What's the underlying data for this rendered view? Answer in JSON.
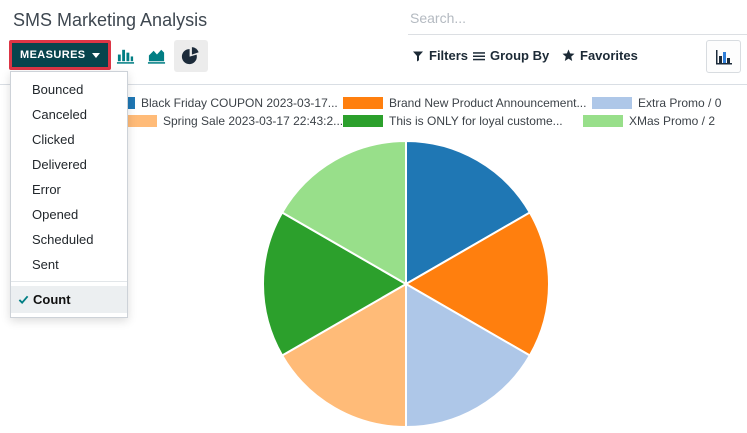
{
  "header": {
    "title": "SMS Marketing Analysis",
    "search_placeholder": "Search..."
  },
  "toolbar": {
    "measures_label": "MEASURES",
    "filters_label": "Filters",
    "group_by_label": "Group By",
    "favorites_label": "Favorites"
  },
  "measures_menu": {
    "items": [
      "Bounced",
      "Canceled",
      "Clicked",
      "Delivered",
      "Error",
      "Opened",
      "Scheduled",
      "Sent"
    ],
    "selected": "Count"
  },
  "chart_data": {
    "type": "pie",
    "title": "",
    "categories": [
      "Black Friday COUPON 2023-03-17...",
      "Brand New Product Announcement...",
      "Extra Promo / 0",
      "Spring Sale 2023-03-17 22:43:2...",
      "This is ONLY for loyal custome...",
      "XMas Promo / 2"
    ],
    "values": [
      1,
      1,
      1,
      1,
      1,
      1
    ],
    "colors": [
      "#1f77b4",
      "#ff7f0e",
      "#aec7e8",
      "#ffbb78",
      "#2ca02c",
      "#98df8a"
    ],
    "measure": "Count",
    "legend_position": "top"
  }
}
